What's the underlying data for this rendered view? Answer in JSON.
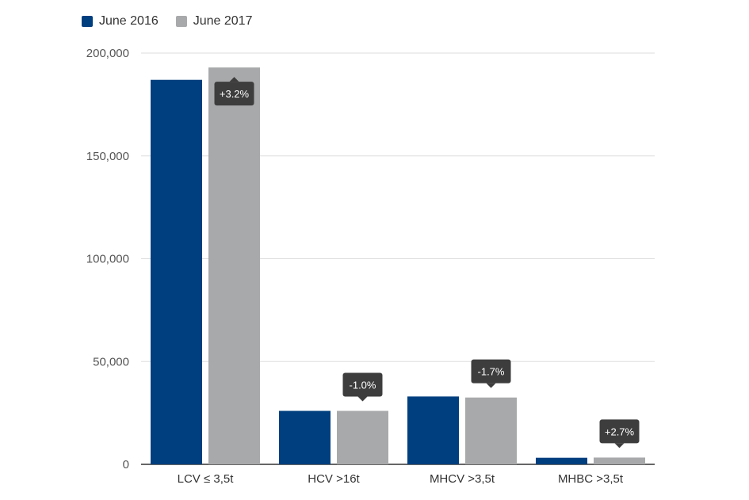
{
  "colors": {
    "june_2016": "#003f7f",
    "june_2017": "#a8a9ab",
    "callout_bg": "#3d3d3d",
    "grid": "#dddddd",
    "axis": "#333333"
  },
  "legend": [
    {
      "label": "June 2016",
      "color": "#003f7f"
    },
    {
      "label": "June 2017",
      "color": "#a8a9ab"
    }
  ],
  "chart_data": {
    "type": "bar",
    "categories": [
      "LCV ≤ 3,5t",
      "HCV >16t",
      "MHCV >3,5t",
      "MHBC >3,5t"
    ],
    "series": [
      {
        "name": "June 2016",
        "values": [
          187000,
          26000,
          33000,
          3200
        ]
      },
      {
        "name": "June 2017",
        "values": [
          193000,
          26000,
          32500,
          3300
        ]
      }
    ],
    "change_labels": [
      "+3.2%",
      "-1.0%",
      "-1.7%",
      "+2.7%"
    ],
    "ylim": [
      0,
      200000
    ],
    "yticks": [
      0,
      50000,
      100000,
      150000,
      200000
    ],
    "ytick_labels": [
      "0",
      "50,000",
      "100,000",
      "150,000",
      "200,000"
    ],
    "grid": true,
    "legend_position": "top-left"
  }
}
